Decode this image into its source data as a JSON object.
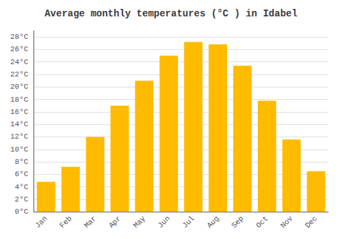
{
  "chart_data": {
    "type": "bar",
    "title": "Average monthly temperatures (°C ) in Idabel",
    "categories": [
      "Jan",
      "Feb",
      "Mar",
      "Apr",
      "May",
      "Jun",
      "Jul",
      "Aug",
      "Sep",
      "Oct",
      "Nov",
      "Dec"
    ],
    "values": [
      4.8,
      7.2,
      12.0,
      17.0,
      21.0,
      25.0,
      27.2,
      26.8,
      23.4,
      17.8,
      11.6,
      6.5
    ],
    "color": "#FFBB00",
    "ylim": [
      0,
      29
    ],
    "yticks": [
      {
        "value": 0,
        "label": "0°C"
      },
      {
        "value": 2,
        "label": "2°C"
      },
      {
        "value": 4,
        "label": "4°C"
      },
      {
        "value": 6,
        "label": "6°C"
      },
      {
        "value": 8,
        "label": "8°C"
      },
      {
        "value": 10,
        "label": "10°C"
      },
      {
        "value": 12,
        "label": "12°C"
      },
      {
        "value": 14,
        "label": "14°C"
      },
      {
        "value": 16,
        "label": "16°C"
      },
      {
        "value": 18,
        "label": "18°C"
      },
      {
        "value": 20,
        "label": "20°C"
      },
      {
        "value": 22,
        "label": "22°C"
      },
      {
        "value": 24,
        "label": "24°C"
      },
      {
        "value": 26,
        "label": "26°C"
      },
      {
        "value": 28,
        "label": "28°C"
      }
    ],
    "grid": true
  }
}
